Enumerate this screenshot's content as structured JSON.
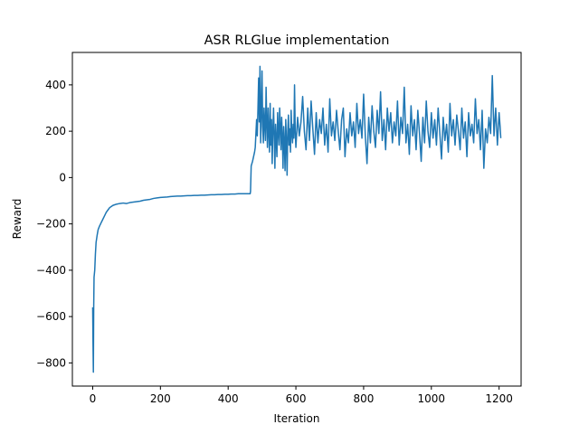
{
  "chart_data": {
    "type": "line",
    "title": "ASR RLGlue implementation",
    "xlabel": "Iteration",
    "ylabel": "Reward",
    "xlim": [
      -60,
      1265
    ],
    "ylim": [
      -900,
      540
    ],
    "xticks": [
      0,
      200,
      400,
      600,
      800,
      1000,
      1200
    ],
    "yticks": [
      -800,
      -600,
      -400,
      -200,
      0,
      200,
      400
    ],
    "xtick_labels": [
      "0",
      "200",
      "400",
      "600",
      "800",
      "1000",
      "1200"
    ],
    "ytick_labels": [
      "−800",
      "−600",
      "−400",
      "−200",
      "0",
      "200",
      "400"
    ],
    "grid": false,
    "legend": "none",
    "series": [
      {
        "color": "#1f77b4",
        "points": [
          [
            0,
            -560
          ],
          [
            1,
            -720
          ],
          [
            2,
            -840
          ],
          [
            3,
            -560
          ],
          [
            4,
            -430
          ],
          [
            6,
            -400
          ],
          [
            8,
            -330
          ],
          [
            10,
            -280
          ],
          [
            13,
            -250
          ],
          [
            16,
            -225
          ],
          [
            20,
            -210
          ],
          [
            25,
            -195
          ],
          [
            30,
            -180
          ],
          [
            35,
            -165
          ],
          [
            40,
            -150
          ],
          [
            45,
            -140
          ],
          [
            50,
            -130
          ],
          [
            55,
            -125
          ],
          [
            60,
            -120
          ],
          [
            70,
            -115
          ],
          [
            80,
            -112
          ],
          [
            90,
            -110
          ],
          [
            100,
            -112
          ],
          [
            110,
            -108
          ],
          [
            120,
            -106
          ],
          [
            130,
            -104
          ],
          [
            140,
            -102
          ],
          [
            150,
            -98
          ],
          [
            160,
            -96
          ],
          [
            170,
            -94
          ],
          [
            180,
            -90
          ],
          [
            190,
            -88
          ],
          [
            200,
            -86
          ],
          [
            210,
            -85
          ],
          [
            220,
            -84
          ],
          [
            230,
            -82
          ],
          [
            240,
            -81
          ],
          [
            250,
            -80
          ],
          [
            260,
            -80
          ],
          [
            270,
            -79
          ],
          [
            280,
            -78
          ],
          [
            290,
            -78
          ],
          [
            300,
            -77
          ],
          [
            310,
            -77
          ],
          [
            320,
            -76
          ],
          [
            330,
            -76
          ],
          [
            340,
            -75
          ],
          [
            350,
            -74
          ],
          [
            360,
            -74
          ],
          [
            370,
            -73
          ],
          [
            380,
            -73
          ],
          [
            390,
            -72
          ],
          [
            400,
            -72
          ],
          [
            410,
            -71
          ],
          [
            420,
            -71
          ],
          [
            430,
            -70
          ],
          [
            440,
            -70
          ],
          [
            450,
            -70
          ],
          [
            460,
            -70
          ],
          [
            465,
            -70
          ],
          [
            466,
            -60
          ],
          [
            468,
            50
          ],
          [
            470,
            60
          ],
          [
            472,
            70
          ],
          [
            475,
            90
          ],
          [
            478,
            110
          ],
          [
            480,
            130
          ],
          [
            482,
            190
          ],
          [
            484,
            250
          ],
          [
            486,
            180
          ],
          [
            488,
            300
          ],
          [
            490,
            430
          ],
          [
            492,
            240
          ],
          [
            494,
            480
          ],
          [
            496,
            150
          ],
          [
            498,
            280
          ],
          [
            500,
            460
          ],
          [
            502,
            220
          ],
          [
            504,
            150
          ],
          [
            506,
            300
          ],
          [
            508,
            230
          ],
          [
            510,
            160
          ],
          [
            512,
            390
          ],
          [
            514,
            240
          ],
          [
            516,
            130
          ],
          [
            518,
            300
          ],
          [
            520,
            200
          ],
          [
            522,
            110
          ],
          [
            524,
            320
          ],
          [
            526,
            140
          ],
          [
            528,
            250
          ],
          [
            530,
            60
          ],
          [
            532,
            200
          ],
          [
            534,
            300
          ],
          [
            536,
            180
          ],
          [
            538,
            40
          ],
          [
            540,
            230
          ],
          [
            542,
            160
          ],
          [
            544,
            90
          ],
          [
            546,
            280
          ],
          [
            548,
            200
          ],
          [
            550,
            140
          ],
          [
            552,
            300
          ],
          [
            554,
            220
          ],
          [
            556,
            120
          ],
          [
            558,
            260
          ],
          [
            560,
            180
          ],
          [
            562,
            40
          ],
          [
            564,
            220
          ],
          [
            566,
            150
          ],
          [
            568,
            30
          ],
          [
            570,
            250
          ],
          [
            572,
            160
          ],
          [
            574,
            10
          ],
          [
            576,
            200
          ],
          [
            578,
            270
          ],
          [
            580,
            140
          ],
          [
            582,
            210
          ],
          [
            584,
            110
          ],
          [
            586,
            290
          ],
          [
            588,
            190
          ],
          [
            590,
            150
          ],
          [
            592,
            230
          ],
          [
            594,
            170
          ],
          [
            596,
            400
          ],
          [
            598,
            200
          ],
          [
            600,
            130
          ],
          [
            605,
            260
          ],
          [
            610,
            180
          ],
          [
            615,
            240
          ],
          [
            620,
            350
          ],
          [
            625,
            200
          ],
          [
            630,
            120
          ],
          [
            635,
            300
          ],
          [
            640,
            160
          ],
          [
            645,
            330
          ],
          [
            650,
            210
          ],
          [
            655,
            100
          ],
          [
            660,
            280
          ],
          [
            665,
            150
          ],
          [
            670,
            250
          ],
          [
            675,
            190
          ],
          [
            680,
            300
          ],
          [
            685,
            140
          ],
          [
            690,
            230
          ],
          [
            695,
            110
          ],
          [
            700,
            340
          ],
          [
            705,
            180
          ],
          [
            710,
            240
          ],
          [
            715,
            160
          ],
          [
            720,
            290
          ],
          [
            725,
            200
          ],
          [
            730,
            120
          ],
          [
            735,
            250
          ],
          [
            740,
            300
          ],
          [
            745,
            90
          ],
          [
            750,
            210
          ],
          [
            755,
            150
          ],
          [
            760,
            280
          ],
          [
            765,
            180
          ],
          [
            770,
            240
          ],
          [
            775,
            130
          ],
          [
            780,
            320
          ],
          [
            785,
            190
          ],
          [
            790,
            250
          ],
          [
            795,
            170
          ],
          [
            800,
            360
          ],
          [
            805,
            180
          ],
          [
            810,
            60
          ],
          [
            815,
            260
          ],
          [
            820,
            150
          ],
          [
            825,
            310
          ],
          [
            830,
            200
          ],
          [
            835,
            130
          ],
          [
            840,
            290
          ],
          [
            845,
            190
          ],
          [
            850,
            370
          ],
          [
            855,
            160
          ],
          [
            860,
            250
          ],
          [
            865,
            120
          ],
          [
            870,
            300
          ],
          [
            875,
            200
          ],
          [
            880,
            280
          ],
          [
            885,
            150
          ],
          [
            890,
            240
          ],
          [
            895,
            180
          ],
          [
            900,
            330
          ],
          [
            905,
            140
          ],
          [
            910,
            260
          ],
          [
            915,
            190
          ],
          [
            920,
            390
          ],
          [
            925,
            150
          ],
          [
            930,
            230
          ],
          [
            935,
            100
          ],
          [
            940,
            310
          ],
          [
            945,
            180
          ],
          [
            950,
            250
          ],
          [
            955,
            120
          ],
          [
            960,
            290
          ],
          [
            965,
            190
          ],
          [
            970,
            70
          ],
          [
            975,
            260
          ],
          [
            980,
            150
          ],
          [
            985,
            330
          ],
          [
            990,
            200
          ],
          [
            995,
            130
          ],
          [
            1000,
            280
          ],
          [
            1005,
            170
          ],
          [
            1010,
            250
          ],
          [
            1015,
            140
          ],
          [
            1020,
            300
          ],
          [
            1025,
            190
          ],
          [
            1030,
            80
          ],
          [
            1035,
            260
          ],
          [
            1040,
            160
          ],
          [
            1045,
            230
          ],
          [
            1050,
            110
          ],
          [
            1055,
            320
          ],
          [
            1060,
            180
          ],
          [
            1065,
            250
          ],
          [
            1070,
            140
          ],
          [
            1075,
            270
          ],
          [
            1080,
            200
          ],
          [
            1085,
            120
          ],
          [
            1090,
            300
          ],
          [
            1095,
            170
          ],
          [
            1100,
            240
          ],
          [
            1105,
            90
          ],
          [
            1110,
            280
          ],
          [
            1115,
            180
          ],
          [
            1120,
            230
          ],
          [
            1125,
            150
          ],
          [
            1130,
            340
          ],
          [
            1135,
            190
          ],
          [
            1140,
            250
          ],
          [
            1145,
            120
          ],
          [
            1150,
            290
          ],
          [
            1155,
            40
          ],
          [
            1160,
            210
          ],
          [
            1165,
            150
          ],
          [
            1170,
            260
          ],
          [
            1175,
            190
          ],
          [
            1180,
            440
          ],
          [
            1185,
            180
          ],
          [
            1190,
            300
          ],
          [
            1195,
            140
          ],
          [
            1200,
            280
          ],
          [
            1203,
            220
          ],
          [
            1205,
            170
          ]
        ]
      }
    ]
  }
}
